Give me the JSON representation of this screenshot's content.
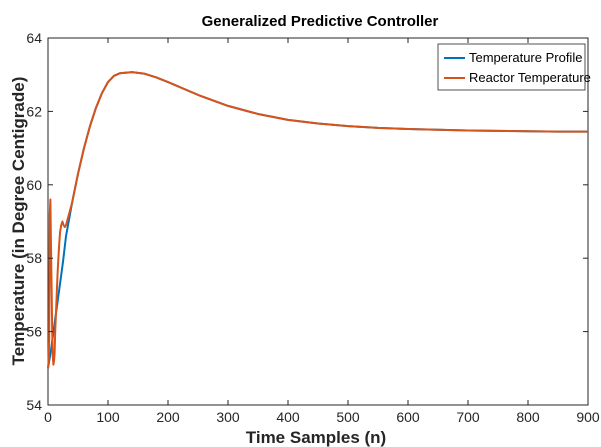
{
  "chart_data": {
    "type": "line",
    "title": "Generalized Predictive Controller",
    "xlabel": "Time Samples (n)",
    "ylabel": "Temperature (in Degree Centigrade)",
    "xlim": [
      0,
      900
    ],
    "ylim": [
      54,
      64
    ],
    "xticks": [
      0,
      100,
      200,
      300,
      400,
      500,
      600,
      700,
      800,
      900
    ],
    "yticks": [
      54,
      56,
      58,
      60,
      62,
      64
    ],
    "legend_position": "top-right",
    "grid": false,
    "series": [
      {
        "name": "Temperature Profile",
        "color": "#0072BD",
        "points": [
          [
            0,
            55.0
          ],
          [
            5,
            55.5
          ],
          [
            10,
            56.1
          ],
          [
            15,
            56.7
          ],
          [
            20,
            57.3
          ],
          [
            25,
            57.9
          ],
          [
            30,
            58.6
          ],
          [
            40,
            59.5
          ],
          [
            50,
            60.3
          ],
          [
            60,
            61.0
          ],
          [
            70,
            61.6
          ],
          [
            80,
            62.1
          ],
          [
            90,
            62.5
          ],
          [
            100,
            62.8
          ],
          [
            110,
            62.97
          ],
          [
            120,
            63.04
          ],
          [
            140,
            63.07
          ],
          [
            160,
            63.03
          ],
          [
            180,
            62.93
          ],
          [
            200,
            62.8
          ],
          [
            250,
            62.45
          ],
          [
            300,
            62.15
          ],
          [
            350,
            61.93
          ],
          [
            400,
            61.77
          ],
          [
            450,
            61.67
          ],
          [
            500,
            61.6
          ],
          [
            550,
            61.55
          ],
          [
            600,
            61.52
          ],
          [
            650,
            61.5
          ],
          [
            700,
            61.48
          ],
          [
            750,
            61.47
          ],
          [
            800,
            61.46
          ],
          [
            850,
            61.45
          ],
          [
            900,
            61.45
          ]
        ]
      },
      {
        "name": "Reactor Temperature",
        "color": "#D95319",
        "points": [
          [
            0,
            55.0
          ],
          [
            1,
            55.2
          ],
          [
            2,
            55.8
          ],
          [
            3,
            59.2
          ],
          [
            4,
            59.6
          ],
          [
            5,
            58.3
          ],
          [
            6,
            57.2
          ],
          [
            7,
            56.0
          ],
          [
            8,
            55.3
          ],
          [
            9,
            55.1
          ],
          [
            10,
            55.2
          ],
          [
            11,
            55.4
          ],
          [
            12,
            56.0
          ],
          [
            14,
            56.8
          ],
          [
            16,
            57.6
          ],
          [
            18,
            58.2
          ],
          [
            20,
            58.7
          ],
          [
            22,
            58.9
          ],
          [
            24,
            59.0
          ],
          [
            26,
            58.9
          ],
          [
            28,
            58.85
          ],
          [
            30,
            58.9
          ],
          [
            35,
            59.2
          ],
          [
            40,
            59.5
          ],
          [
            50,
            60.3
          ],
          [
            60,
            61.0
          ],
          [
            70,
            61.6
          ],
          [
            80,
            62.1
          ],
          [
            90,
            62.5
          ],
          [
            100,
            62.8
          ],
          [
            110,
            62.97
          ],
          [
            120,
            63.04
          ],
          [
            140,
            63.07
          ],
          [
            160,
            63.03
          ],
          [
            180,
            62.93
          ],
          [
            200,
            62.8
          ],
          [
            250,
            62.45
          ],
          [
            300,
            62.15
          ],
          [
            350,
            61.93
          ],
          [
            400,
            61.77
          ],
          [
            450,
            61.67
          ],
          [
            500,
            61.6
          ],
          [
            550,
            61.55
          ],
          [
            600,
            61.52
          ],
          [
            650,
            61.5
          ],
          [
            700,
            61.48
          ],
          [
            750,
            61.47
          ],
          [
            800,
            61.46
          ],
          [
            850,
            61.45
          ],
          [
            900,
            61.45
          ]
        ]
      }
    ]
  }
}
